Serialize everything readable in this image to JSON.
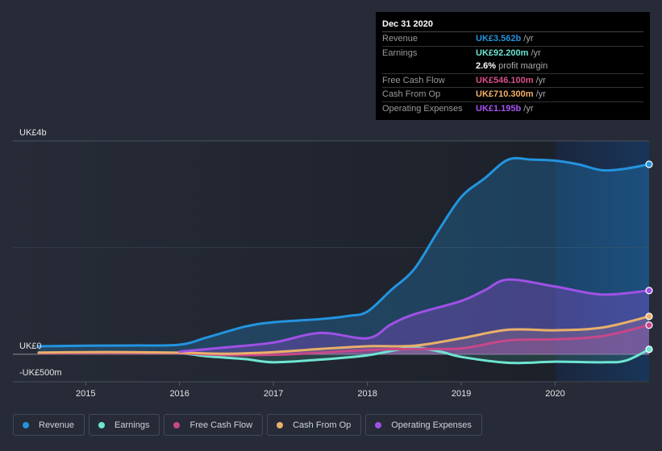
{
  "tooltip": {
    "date": "Dec 31 2020",
    "rows": [
      {
        "label": "Revenue",
        "value": "UK£3.562b",
        "unit": "/yr",
        "color": "#2394df"
      },
      {
        "label": "Earnings",
        "value": "UK£92.200m",
        "unit": "/yr",
        "color": "#6ee5d2"
      },
      {
        "label": "",
        "value": "2.6%",
        "unit": "profit margin",
        "color": "#ffffff"
      },
      {
        "label": "Free Cash Flow",
        "value": "UK£546.100m",
        "unit": "/yr",
        "color": "#d9508f"
      },
      {
        "label": "Cash From Op",
        "value": "UK£710.300m",
        "unit": "/yr",
        "color": "#f2b068"
      },
      {
        "label": "Operating Expenses",
        "value": "UK£1.195b",
        "unit": "/yr",
        "color": "#a855f7"
      }
    ]
  },
  "legend": [
    {
      "label": "Revenue",
      "color": "#2394df"
    },
    {
      "label": "Earnings",
      "color": "#6ee5d2"
    },
    {
      "label": "Free Cash Flow",
      "color": "#c7478a"
    },
    {
      "label": "Cash From Op",
      "color": "#e9b06a"
    },
    {
      "label": "Operating Expenses",
      "color": "#9f51e6"
    }
  ],
  "chart_data": {
    "type": "area",
    "title": "",
    "xlabel": "",
    "ylabel": "",
    "y_unit": "UK£ millions",
    "ylim": [
      -500,
      4000
    ],
    "xlim": [
      2014.5,
      2021.0
    ],
    "y_tick_labels": [
      {
        "value": 4000,
        "label": "UK£4b"
      },
      {
        "value": 0,
        "label": "UK£0"
      },
      {
        "value": -500,
        "label": "-UK£500m"
      }
    ],
    "x_ticks": [
      2015,
      2016,
      2017,
      2018,
      2019,
      2020
    ],
    "x_tick_labels": [
      "2015",
      "2016",
      "2017",
      "2018",
      "2019",
      "2020"
    ],
    "highlight_region": [
      2020.0,
      2021.0
    ],
    "grid": true,
    "legend_position": "bottom-left",
    "series": [
      {
        "name": "Revenue",
        "color": "#2394df",
        "x": [
          2014.5,
          2015.0,
          2015.5,
          2016.0,
          2016.3,
          2016.7,
          2017.0,
          2017.5,
          2017.8,
          2018.0,
          2018.25,
          2018.5,
          2018.75,
          2019.0,
          2019.25,
          2019.5,
          2019.75,
          2020.0,
          2020.25,
          2020.5,
          2020.75,
          2021.0
        ],
        "values": [
          150,
          160,
          165,
          180,
          320,
          520,
          600,
          660,
          720,
          800,
          1200,
          1600,
          2300,
          2950,
          3300,
          3650,
          3650,
          3630,
          3560,
          3450,
          3480,
          3562
        ]
      },
      {
        "name": "Earnings",
        "color": "#6ee5d2",
        "x": [
          2014.5,
          2015.0,
          2015.5,
          2016.0,
          2016.3,
          2016.7,
          2017.0,
          2017.5,
          2018.0,
          2018.3,
          2018.5,
          2018.8,
          2019.0,
          2019.5,
          2020.0,
          2020.5,
          2020.75,
          2021.0
        ],
        "values": [
          30,
          30,
          30,
          20,
          -40,
          -90,
          -150,
          -100,
          -20,
          80,
          130,
          40,
          -50,
          -160,
          -140,
          -150,
          -120,
          92.2
        ]
      },
      {
        "name": "Free Cash Flow",
        "color": "#c7478a",
        "x": [
          2014.5,
          2015.0,
          2015.5,
          2016.0,
          2016.5,
          2017.0,
          2017.5,
          2018.0,
          2018.5,
          2019.0,
          2019.5,
          2020.0,
          2020.5,
          2021.0
        ],
        "values": [
          20,
          25,
          25,
          20,
          -15,
          -10,
          30,
          80,
          100,
          110,
          260,
          280,
          340,
          546.1
        ]
      },
      {
        "name": "Cash From Op",
        "color": "#e9b06a",
        "x": [
          2014.5,
          2015.0,
          2015.5,
          2016.0,
          2016.5,
          2017.0,
          2017.5,
          2018.0,
          2018.5,
          2019.0,
          2019.5,
          2020.0,
          2020.5,
          2021.0
        ],
        "values": [
          30,
          40,
          40,
          30,
          10,
          40,
          100,
          150,
          160,
          300,
          460,
          450,
          500,
          710.3
        ]
      },
      {
        "name": "Operating Expenses",
        "color": "#9f51e6",
        "x": [
          2016.0,
          2016.5,
          2017.0,
          2017.5,
          2018.0,
          2018.25,
          2018.5,
          2019.0,
          2019.25,
          2019.5,
          2020.0,
          2020.5,
          2021.0
        ],
        "values": [
          50,
          130,
          220,
          400,
          300,
          560,
          750,
          1000,
          1200,
          1400,
          1270,
          1120,
          1195
        ]
      }
    ]
  }
}
